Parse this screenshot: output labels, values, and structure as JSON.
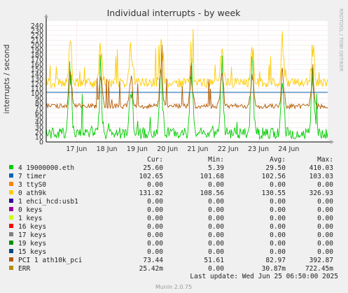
{
  "chart_data": {
    "type": "line",
    "title": "Individual interrupts - by week",
    "ylabel": "interrupts / second",
    "ylim": [
      0,
      250
    ],
    "yticks": [
      0,
      10,
      20,
      30,
      40,
      50,
      60,
      70,
      80,
      90,
      100,
      110,
      120,
      130,
      140,
      150,
      160,
      170,
      180,
      190,
      200,
      210,
      220,
      230,
      240
    ],
    "xlim": [
      "2025-06-16T00:00",
      "2025-06-25T06:50"
    ],
    "xticks": [
      {
        "label": "17 Jun",
        "at": "2025-06-17T00:00"
      },
      {
        "label": "18 Jun",
        "at": "2025-06-18T00:00"
      },
      {
        "label": "19 Jun",
        "at": "2025-06-19T00:00"
      },
      {
        "label": "20 Jun",
        "at": "2025-06-20T00:00"
      },
      {
        "label": "21 Jun",
        "at": "2025-06-21T00:00"
      },
      {
        "label": "22 Jun",
        "at": "2025-06-22T00:00"
      },
      {
        "label": "23 Jun",
        "at": "2025-06-23T00:00"
      },
      {
        "label": "24 Jun",
        "at": "2025-06-24T00:00"
      }
    ],
    "grid": true,
    "side_label": "RRDTOOL / TOBI OETIKER",
    "footer": "Munin 2.0.75",
    "last_update": "Last update: Wed Jun 25 06:50:00 2025",
    "columns": [
      "Cur:",
      "Min:",
      "Avg:",
      "Max:"
    ],
    "series": [
      {
        "name": "4 19000000.eth",
        "color": "#00cc00",
        "cur": "25.60",
        "min": "5.39",
        "avg": "29.50",
        "max": "410.03",
        "base": 18,
        "amp": 12,
        "spike": 190
      },
      {
        "name": "7 timer",
        "color": "#0066b3",
        "cur": "102.65",
        "min": "101.68",
        "avg": "102.56",
        "max": "103.03",
        "flat": 102.6
      },
      {
        "name": "3 ttyS0",
        "color": "#ff8000",
        "cur": "0.00",
        "min": "0.00",
        "avg": "0.00",
        "max": "0.00"
      },
      {
        "name": "0 ath9k",
        "color": "#ffcc00",
        "cur": "131.82",
        "min": "108.56",
        "avg": "130.55",
        "max": "326.93",
        "base": 122,
        "amp": 10,
        "spike": 230
      },
      {
        "name": "1 ehci_hcd:usb1",
        "color": "#330099",
        "cur": "0.00",
        "min": "0.00",
        "avg": "0.00",
        "max": "0.00"
      },
      {
        "name": "0 keys",
        "color": "#990099",
        "cur": "0.00",
        "min": "0.00",
        "avg": "0.00",
        "max": "0.00"
      },
      {
        "name": "1 keys",
        "color": "#ccff00",
        "cur": "0.00",
        "min": "0.00",
        "avg": "0.00",
        "max": "0.00"
      },
      {
        "name": "16 keys",
        "color": "#ff0000",
        "cur": "0.00",
        "min": "0.00",
        "avg": "0.00",
        "max": "0.00"
      },
      {
        "name": "17 keys",
        "color": "#808080",
        "cur": "0.00",
        "min": "0.00",
        "avg": "0.00",
        "max": "0.00"
      },
      {
        "name": "19 keys",
        "color": "#008f00",
        "cur": "0.00",
        "min": "0.00",
        "avg": "0.00",
        "max": "0.00"
      },
      {
        "name": "15 keys",
        "color": "#00487d",
        "cur": "0.00",
        "min": "0.00",
        "avg": "0.00",
        "max": "0.00"
      },
      {
        "name": "PCI 1 ath10k_pci",
        "color": "#b35a00",
        "cur": "73.44",
        "min": "51.61",
        "avg": "82.97",
        "max": "392.87",
        "base": 74,
        "amp": 5,
        "spike": 170
      },
      {
        "name": "ERR",
        "color": "#b38f00",
        "cur": "25.42m",
        "min": "0.00",
        "avg": "30.87m",
        "max": "722.45m"
      }
    ]
  }
}
